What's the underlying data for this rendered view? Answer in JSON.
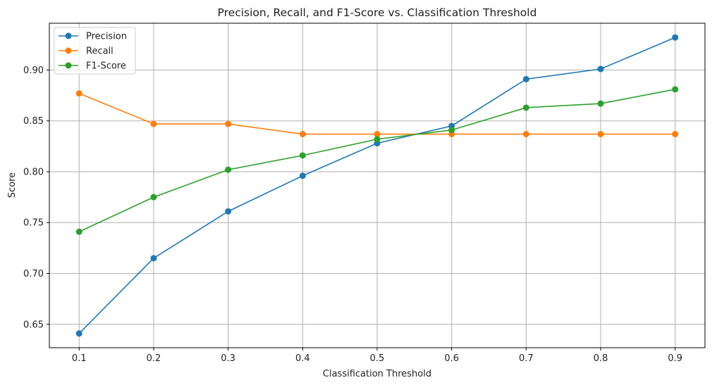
{
  "chart_data": {
    "type": "line",
    "title": "Precision, Recall, and F1-Score vs. Classification Threshold",
    "xlabel": "Classification Threshold",
    "ylabel": "Score",
    "x": [
      0.1,
      0.2,
      0.3,
      0.4,
      0.5,
      0.6,
      0.7,
      0.8,
      0.9
    ],
    "x_tick_labels": [
      "0.1",
      "0.2",
      "0.3",
      "0.4",
      "0.5",
      "0.6",
      "0.7",
      "0.8",
      "0.9"
    ],
    "y_ticks": [
      0.65,
      0.7,
      0.75,
      0.8,
      0.85,
      0.9
    ],
    "y_tick_labels": [
      "0.65",
      "0.70",
      "0.75",
      "0.80",
      "0.85",
      "0.90"
    ],
    "xlim": [
      0.06,
      0.94
    ],
    "ylim": [
      0.627,
      0.946
    ],
    "grid": true,
    "legend_position": "top-left",
    "series": [
      {
        "name": "Precision",
        "color": "#1f77b4",
        "marker": "circle",
        "values": [
          0.641,
          0.715,
          0.761,
          0.796,
          0.828,
          0.845,
          0.891,
          0.901,
          0.932
        ]
      },
      {
        "name": "Recall",
        "color": "#ff7f0e",
        "marker": "circle",
        "values": [
          0.877,
          0.847,
          0.847,
          0.837,
          0.837,
          0.837,
          0.837,
          0.837,
          0.837
        ]
      },
      {
        "name": "F1-Score",
        "color": "#2ca02c",
        "marker": "circle",
        "values": [
          0.741,
          0.775,
          0.802,
          0.816,
          0.832,
          0.841,
          0.863,
          0.867,
          0.881
        ]
      }
    ]
  }
}
